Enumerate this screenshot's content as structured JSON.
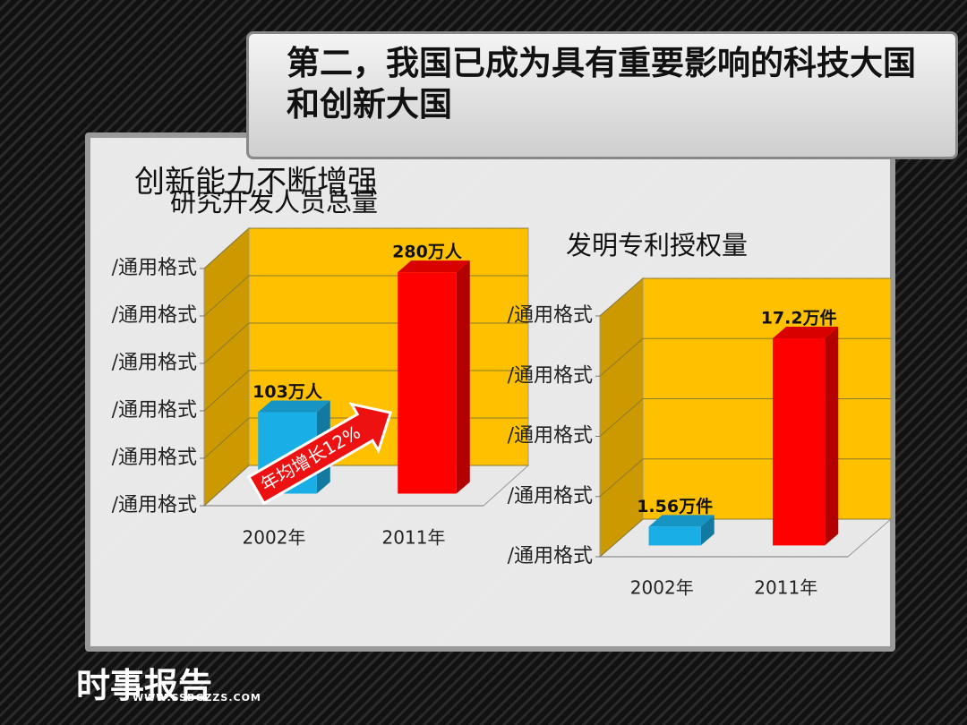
{
  "slide": {
    "title": "第二，我国已成为具有重要影响的科技大国和创新大国",
    "heading": "创新能力不断增强",
    "logo": "时事报告",
    "url": "WWW.SSBGZZS.COM"
  },
  "chart_data": [
    {
      "type": "bar",
      "title": "研究开发人员总量",
      "categories": [
        "2002年",
        "2011年"
      ],
      "values": [
        103,
        280
      ],
      "value_labels": [
        "103万人",
        "280万人"
      ],
      "colors": [
        "#1aaee6",
        "#ff0000"
      ],
      "wall_color": "#ffc000",
      "ylim": [
        0,
        300
      ],
      "yticks": [
        {
          "value": 0,
          "label": "/通用格式"
        },
        {
          "value": 60,
          "label": "/通用格式"
        },
        {
          "value": 120,
          "label": "/通用格式"
        },
        {
          "value": 180,
          "label": "/通用格式"
        },
        {
          "value": 240,
          "label": "/通用格式"
        },
        {
          "value": 300,
          "label": "/通用格式"
        }
      ],
      "grid": true,
      "annotation": "年均增长12%"
    },
    {
      "type": "bar",
      "title": "发明专利授权量",
      "categories": [
        "2002年",
        "2011年"
      ],
      "values": [
        1.56,
        17.2
      ],
      "value_labels": [
        "1.56万件",
        "17.2万件"
      ],
      "colors": [
        "#1aaee6",
        "#ff0000"
      ],
      "wall_color": "#ffc000",
      "ylim": [
        0,
        20
      ],
      "yticks": [
        {
          "value": 0,
          "label": "/通用格式"
        },
        {
          "value": 5,
          "label": "/通用格式"
        },
        {
          "value": 10,
          "label": "/通用格式"
        },
        {
          "value": 15,
          "label": "/通用格式"
        },
        {
          "value": 20,
          "label": "/通用格式"
        }
      ],
      "grid": true
    }
  ]
}
